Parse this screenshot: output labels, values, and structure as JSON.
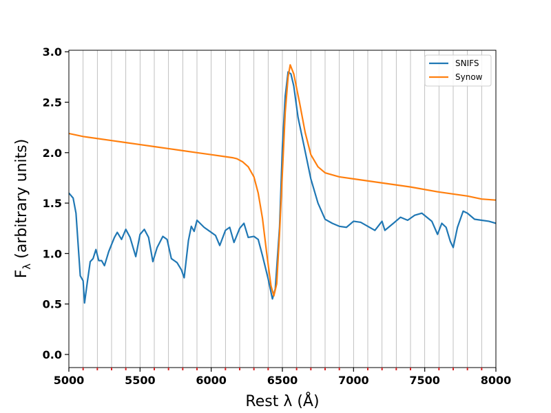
{
  "chart_data": {
    "type": "line",
    "xlabel": "Rest λ (Å)",
    "ylabel": {
      "main": "F",
      "sub": "λ",
      "rest": " (arbitrary units)"
    },
    "xlim": [
      5000,
      8000
    ],
    "xticks": [
      5000,
      5500,
      6000,
      6500,
      7000,
      7500,
      8000
    ],
    "minor_xticks": [
      5100,
      5200,
      5300,
      5400,
      5600,
      5700,
      5800,
      5900,
      6100,
      6200,
      6300,
      6400,
      6600,
      6700,
      6800,
      6900,
      7100,
      7200,
      7300,
      7400,
      7600,
      7700,
      7800,
      7900
    ],
    "minor_tick_color": "#d62728",
    "xgrid": true,
    "ylim": [
      -0.13,
      3.015
    ],
    "yticks": [
      {
        "value": 0,
        "label": "0.0"
      },
      {
        "value": 0.5,
        "label": "0.5"
      },
      {
        "value": 1,
        "label": "1.0"
      },
      {
        "value": 1.5,
        "label": "1.5"
      },
      {
        "value": 2,
        "label": "2.0"
      },
      {
        "value": 2.5,
        "label": "2.5"
      },
      {
        "value": 3,
        "label": "3.0"
      }
    ],
    "legend": "upper right",
    "series": [
      {
        "name": "SNIFS",
        "color": "#1f77b4",
        "x": [
          5000,
          5030,
          5050,
          5080,
          5100,
          5110,
          5130,
          5150,
          5170,
          5190,
          5210,
          5230,
          5250,
          5280,
          5320,
          5340,
          5370,
          5400,
          5430,
          5470,
          5500,
          5530,
          5560,
          5590,
          5620,
          5660,
          5690,
          5720,
          5760,
          5790,
          5810,
          5840,
          5860,
          5880,
          5900,
          5950,
          6000,
          6030,
          6060,
          6100,
          6130,
          6160,
          6200,
          6230,
          6260,
          6300,
          6330,
          6360,
          6400,
          6430,
          6450,
          6480,
          6500,
          6520,
          6540,
          6560,
          6580,
          6610,
          6650,
          6700,
          6750,
          6800,
          6850,
          6900,
          6950,
          7000,
          7050,
          7100,
          7150,
          7200,
          7220,
          7280,
          7330,
          7380,
          7430,
          7480,
          7550,
          7590,
          7620,
          7650,
          7680,
          7700,
          7730,
          7770,
          7800,
          7850,
          7900,
          7950,
          8000
        ],
        "values": [
          1.6,
          1.55,
          1.4,
          0.78,
          0.73,
          0.51,
          0.72,
          0.92,
          0.95,
          1.04,
          0.93,
          0.93,
          0.88,
          1.02,
          1.16,
          1.21,
          1.14,
          1.24,
          1.16,
          0.97,
          1.19,
          1.24,
          1.16,
          0.92,
          1.06,
          1.17,
          1.14,
          0.95,
          0.91,
          0.84,
          0.76,
          1.13,
          1.27,
          1.22,
          1.33,
          1.26,
          1.21,
          1.18,
          1.08,
          1.23,
          1.26,
          1.11,
          1.25,
          1.3,
          1.16,
          1.17,
          1.14,
          0.98,
          0.75,
          0.55,
          0.65,
          1.26,
          2.05,
          2.56,
          2.8,
          2.78,
          2.66,
          2.35,
          2.08,
          1.74,
          1.5,
          1.34,
          1.3,
          1.27,
          1.26,
          1.32,
          1.31,
          1.27,
          1.23,
          1.32,
          1.23,
          1.3,
          1.36,
          1.33,
          1.38,
          1.4,
          1.32,
          1.19,
          1.3,
          1.26,
          1.12,
          1.06,
          1.26,
          1.42,
          1.4,
          1.34,
          1.33,
          1.32,
          1.3
        ]
      },
      {
        "name": "Synow",
        "color": "#ff7f0e",
        "x": [
          5000,
          5100,
          5200,
          5300,
          5400,
          5500,
          5600,
          5700,
          5800,
          5900,
          6000,
          6100,
          6150,
          6180,
          6220,
          6260,
          6300,
          6330,
          6360,
          6390,
          6420,
          6440,
          6460,
          6480,
          6500,
          6520,
          6540,
          6555,
          6580,
          6620,
          6660,
          6700,
          6750,
          6800,
          6900,
          7000,
          7200,
          7400,
          7600,
          7800,
          7900,
          8000
        ],
        "values": [
          2.19,
          2.16,
          2.14,
          2.12,
          2.1,
          2.08,
          2.06,
          2.04,
          2.02,
          2.0,
          1.98,
          1.96,
          1.95,
          1.94,
          1.91,
          1.86,
          1.76,
          1.6,
          1.35,
          1.0,
          0.68,
          0.58,
          0.7,
          1.2,
          1.8,
          2.4,
          2.75,
          2.87,
          2.78,
          2.5,
          2.2,
          1.98,
          1.86,
          1.8,
          1.76,
          1.74,
          1.7,
          1.66,
          1.61,
          1.57,
          1.54,
          1.53
        ]
      }
    ]
  }
}
